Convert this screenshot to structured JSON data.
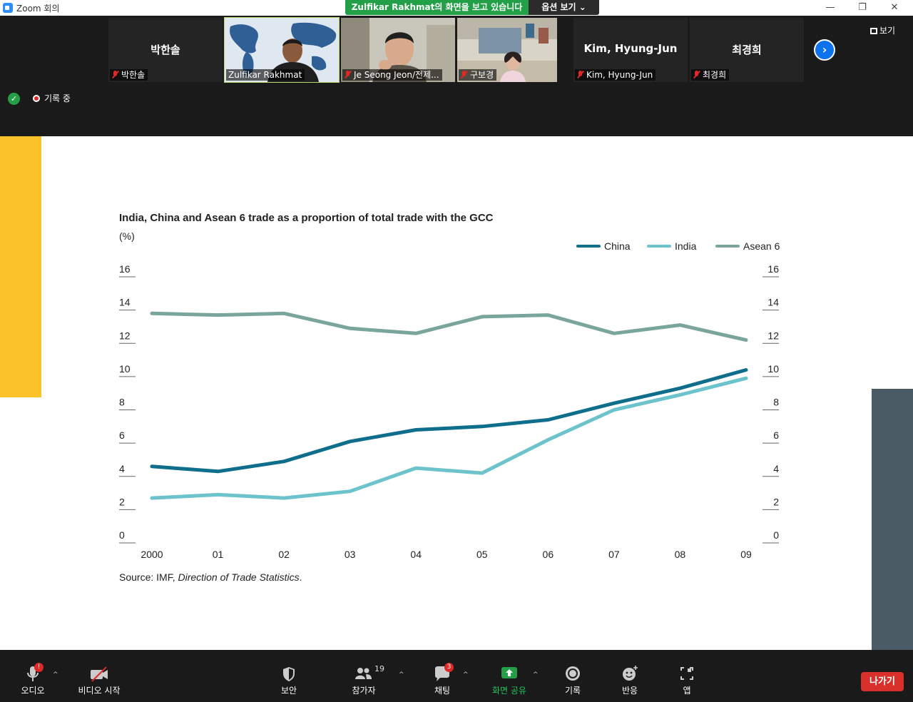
{
  "window": {
    "title": "Zoom 회의",
    "minimize_symbol": "—",
    "restore_symbol": "❐",
    "close_symbol": "✕"
  },
  "share_banner": {
    "text": "Zulfikar  Rakhmat의 화면을 보고 있습니다",
    "view_options": "옵션 보기 ⌄"
  },
  "participants": [
    {
      "name": "박한솔",
      "label": "박한솔",
      "video": false,
      "muted": true
    },
    {
      "name": "Zulfikar Rakhmat",
      "label": "Zulfikar Rakhmat",
      "video": true,
      "muted": false,
      "active_speaker": true
    },
    {
      "name": "Je Seong Jeon/전제...",
      "label": "Je Seong Jeon/전제...",
      "video": true,
      "muted": true
    },
    {
      "name": "구보경",
      "label": "구보경",
      "video": true,
      "muted": true
    },
    {
      "name": "Kim, Hyung-Jun",
      "label": "Kim, Hyung-Jun",
      "video": false,
      "muted": true
    },
    {
      "name": "최경희",
      "label": "최경희",
      "video": false,
      "muted": true
    }
  ],
  "strip": {
    "view_label": "보기",
    "next_symbol": "›",
    "recording_label": "기록 중",
    "shield_symbol": "✓"
  },
  "colors": {
    "china": "#0f6e8c",
    "india": "#6cc3cc",
    "asean": "#7aa59c",
    "accent_yellow": "#fcc22a",
    "accent_slate": "#4a5b66"
  },
  "chart_data": {
    "type": "line",
    "title": "India, China and Asean 6 trade as a proportion of total trade with the GCC",
    "ylabel": "(%)",
    "x": [
      "2000",
      "01",
      "02",
      "03",
      "04",
      "05",
      "06",
      "07",
      "08",
      "09"
    ],
    "ylim": [
      0,
      16
    ],
    "yticks": [
      0,
      2,
      4,
      6,
      8,
      10,
      12,
      14,
      16
    ],
    "legend_position": "top-right",
    "grid": false,
    "series": [
      {
        "name": "China",
        "values": [
          4.6,
          4.3,
          4.9,
          6.1,
          6.8,
          7.0,
          7.4,
          8.4,
          9.3,
          10.4
        ]
      },
      {
        "name": "India",
        "values": [
          2.7,
          2.9,
          2.7,
          3.1,
          4.5,
          4.2,
          6.2,
          8.0,
          8.9,
          9.9
        ]
      },
      {
        "name": "Asean 6",
        "values": [
          13.8,
          13.7,
          13.8,
          12.9,
          12.6,
          13.6,
          13.7,
          12.6,
          13.1,
          12.2
        ]
      }
    ],
    "source_prefix": "Source: IMF, ",
    "source_title": "Direction of Trade Statistics",
    "source_suffix": "."
  },
  "toolbar": {
    "audio": "오디오",
    "audio_badge": "!",
    "video": "비디오 시작",
    "security": "보안",
    "participants": "참가자",
    "participants_count": "19",
    "chat": "채팅",
    "chat_badge": "3",
    "share": "화면 공유",
    "record": "기록",
    "reactions": "반응",
    "apps": "앱",
    "leave": "나가기",
    "caret": "^"
  }
}
